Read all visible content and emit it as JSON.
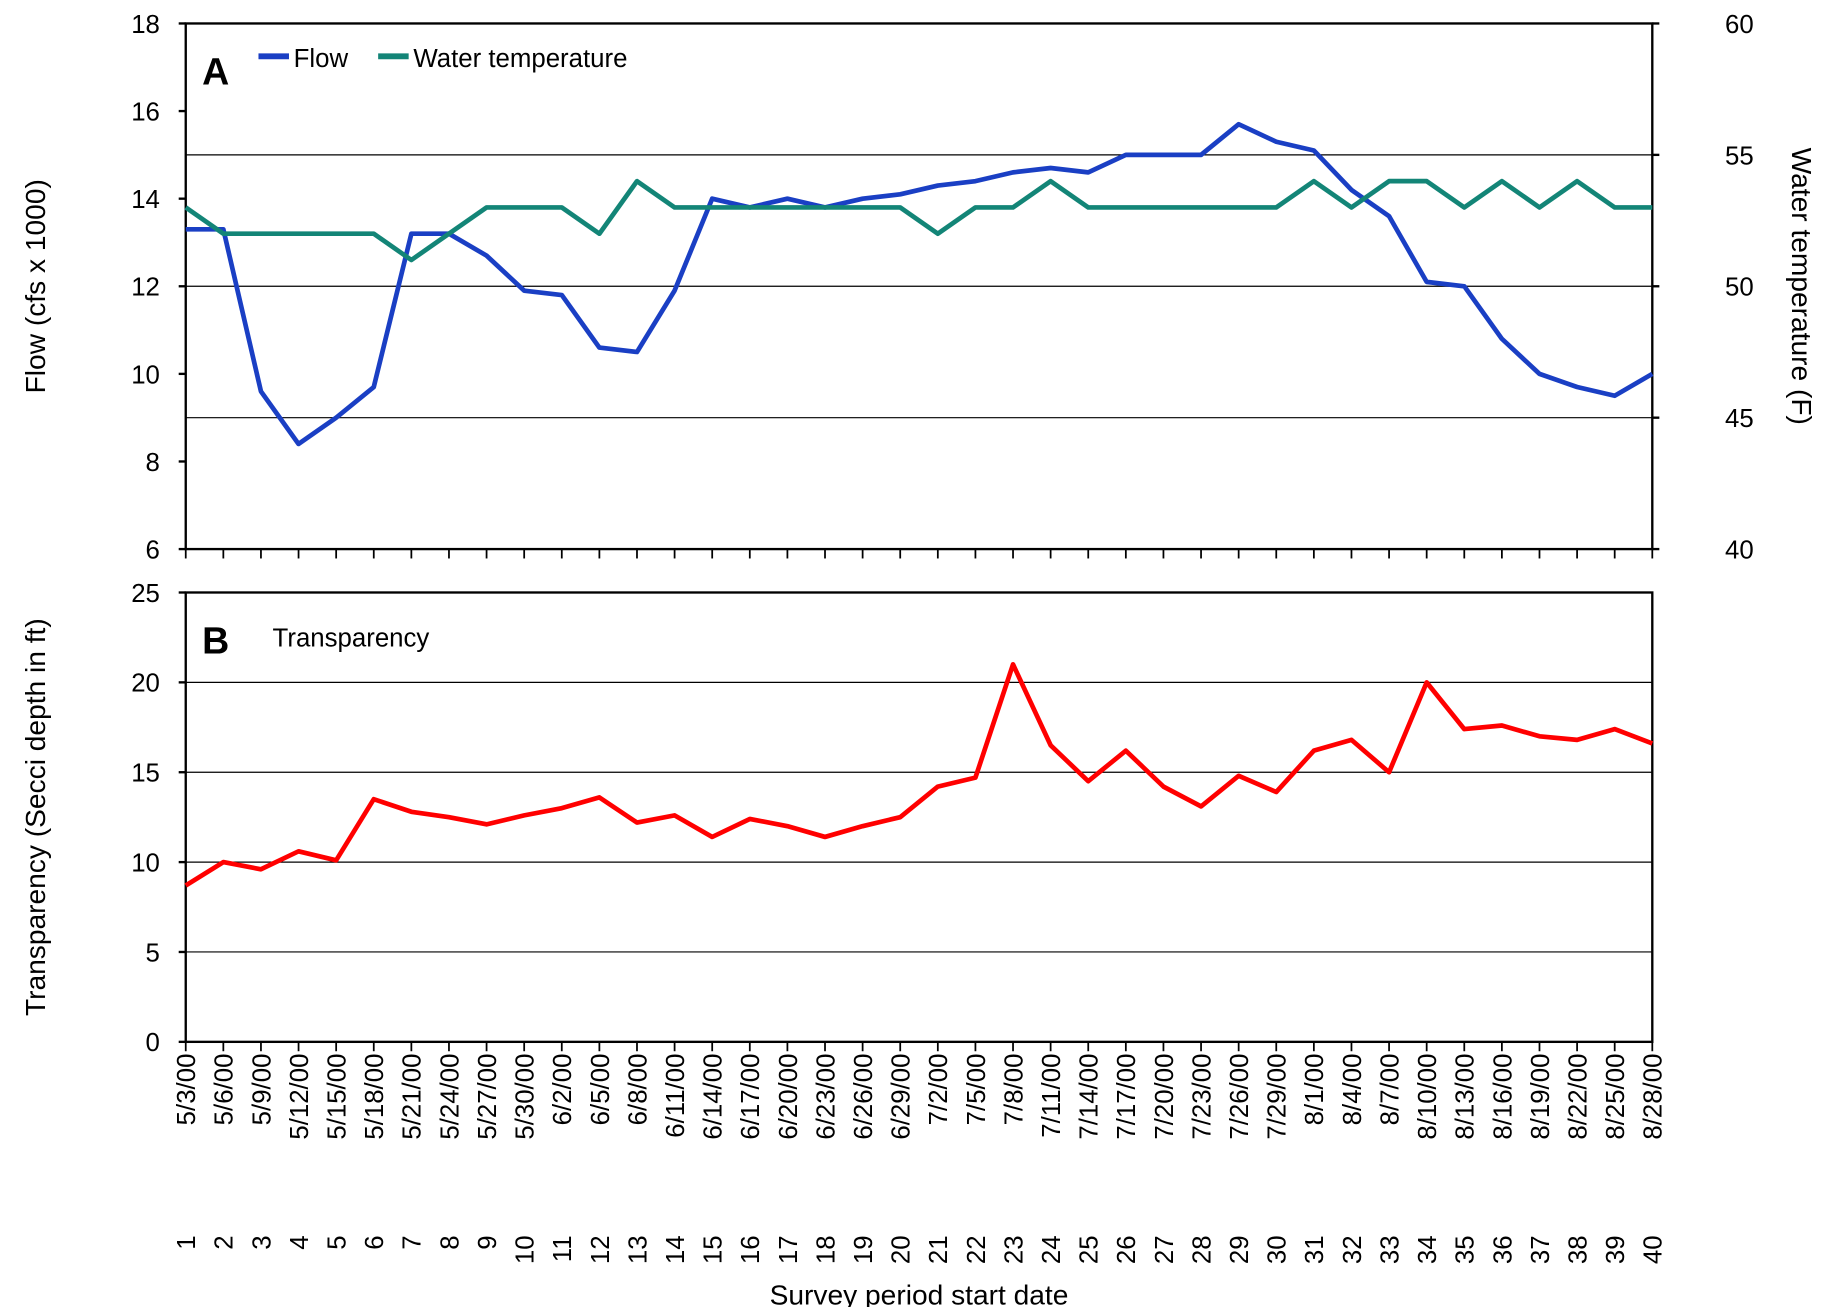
{
  "chart_data": [
    {
      "type": "line",
      "panel_label": "A",
      "y_label": "Flow (cfs x 1000)",
      "y2_label": "Water temperature (F)",
      "ylim": [
        6,
        18
      ],
      "yticks": [
        6,
        8,
        10,
        12,
        14,
        16,
        18
      ],
      "y2lim": [
        40,
        60
      ],
      "y2ticks": [
        40,
        45,
        50,
        55,
        60
      ],
      "grid": "y2",
      "series": [
        {
          "name": "Flow",
          "color": "#1a3fc4",
          "values": [
            13.3,
            13.3,
            9.6,
            8.4,
            9.0,
            9.7,
            13.2,
            13.2,
            12.7,
            11.9,
            11.8,
            10.6,
            10.5,
            11.9,
            14.0,
            13.8,
            14.0,
            13.8,
            14.0,
            14.1,
            14.3,
            14.4,
            14.6,
            14.7,
            14.6,
            15.0,
            15.0,
            15.0,
            15.7,
            15.3,
            15.1,
            14.2,
            13.6,
            12.1,
            12.0,
            10.8,
            10.0,
            9.7,
            9.5,
            10.0
          ]
        },
        {
          "name": "Water temperature",
          "color": "#138577",
          "axis": "y2",
          "values": [
            53,
            52,
            52,
            52,
            52,
            52,
            51,
            52,
            53,
            53,
            53,
            52,
            54,
            53,
            53,
            53,
            53,
            53,
            53,
            53,
            52,
            53,
            53,
            54,
            53,
            53,
            53,
            53,
            53,
            53,
            54,
            53,
            54,
            54,
            53,
            54,
            53,
            54,
            53,
            53
          ]
        }
      ]
    },
    {
      "type": "line",
      "panel_label": "B",
      "y_label": "Transparency (Secci depth in ft)",
      "x_label": "Survey period start date",
      "categories": [
        "5/3/00",
        "5/6/00",
        "5/9/00",
        "5/12/00",
        "5/15/00",
        "5/18/00",
        "5/21/00",
        "5/24/00",
        "5/27/00",
        "5/30/00",
        "6/2/00",
        "6/5/00",
        "6/8/00",
        "6/11/00",
        "6/14/00",
        "6/17/00",
        "6/20/00",
        "6/23/00",
        "6/26/00",
        "6/29/00",
        "7/2/00",
        "7/5/00",
        "7/8/00",
        "7/11/00",
        "7/14/00",
        "7/17/00",
        "7/20/00",
        "7/23/00",
        "7/26/00",
        "7/29/00",
        "8/1/00",
        "8/4/00",
        "8/7/00",
        "8/10/00",
        "8/13/00",
        "8/16/00",
        "8/19/00",
        "8/22/00",
        "8/25/00",
        "8/28/00"
      ],
      "periods": [
        1,
        2,
        3,
        4,
        5,
        6,
        7,
        8,
        9,
        10,
        11,
        12,
        13,
        14,
        15,
        16,
        17,
        18,
        19,
        20,
        21,
        22,
        23,
        24,
        25,
        26,
        27,
        28,
        29,
        30,
        31,
        32,
        33,
        34,
        35,
        36,
        37,
        38,
        39,
        40
      ],
      "ylim": [
        0,
        25
      ],
      "yticks": [
        0,
        5,
        10,
        15,
        20,
        25
      ],
      "grid": "y",
      "series": [
        {
          "name": "Transparency",
          "color": "#ff0000",
          "values": [
            8.7,
            10.0,
            9.6,
            10.6,
            10.1,
            13.5,
            12.8,
            12.5,
            12.1,
            12.6,
            13.0,
            13.6,
            12.2,
            12.6,
            11.4,
            12.4,
            12.0,
            11.4,
            12.0,
            12.5,
            14.2,
            14.7,
            21.0,
            16.5,
            14.5,
            16.2,
            14.2,
            13.1,
            14.8,
            13.9,
            16.2,
            16.8,
            15.0,
            20.0,
            17.4,
            17.6,
            17.0,
            16.8,
            17.4,
            16.6
          ]
        }
      ]
    }
  ]
}
